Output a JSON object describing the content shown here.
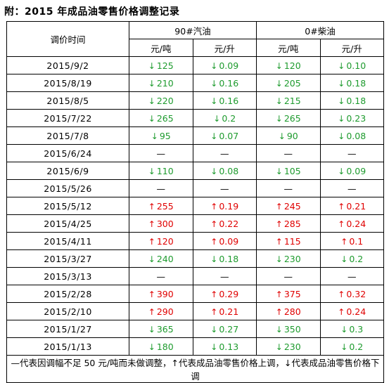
{
  "title": "附：2015 年成品油零售价格调整记录",
  "headers": {
    "date": "调价时间",
    "gasoline": "90#汽油",
    "diesel": "0#柴油",
    "unit_ton": "元/吨",
    "unit_liter": "元/升"
  },
  "rows": [
    {
      "date": "2015/9/2",
      "dir": "down",
      "g_ton": "125",
      "g_liter": "0.09",
      "d_ton": "120",
      "d_liter": "0.10"
    },
    {
      "date": "2015/8/19",
      "dir": "down",
      "g_ton": "210",
      "g_liter": "0.16",
      "d_ton": "205",
      "d_liter": "0.18"
    },
    {
      "date": "2015/8/5",
      "dir": "down",
      "g_ton": "220",
      "g_liter": "0.16",
      "d_ton": "215",
      "d_liter": "0.18"
    },
    {
      "date": "2015/7/22",
      "dir": "down",
      "g_ton": "265",
      "g_liter": "0.2",
      "d_ton": "265",
      "d_liter": "0.23"
    },
    {
      "date": "2015/7/8",
      "dir": "down",
      "g_ton": "95",
      "g_liter": "0.07",
      "d_ton": "90",
      "d_liter": "0.08"
    },
    {
      "date": "2015/6/24",
      "dir": "none",
      "g_ton": "—",
      "g_liter": "—",
      "d_ton": "—",
      "d_liter": "—"
    },
    {
      "date": "2015/6/9",
      "dir": "down",
      "g_ton": "110",
      "g_liter": "0.08",
      "d_ton": "105",
      "d_liter": "0.09"
    },
    {
      "date": "2015/5/26",
      "dir": "none",
      "g_ton": "—",
      "g_liter": "—",
      "d_ton": "—",
      "d_liter": "—"
    },
    {
      "date": "2015/5/12",
      "dir": "up",
      "g_ton": "255",
      "g_liter": "0.19",
      "d_ton": "245",
      "d_liter": "0.21"
    },
    {
      "date": "2015/4/25",
      "dir": "up",
      "g_ton": "300",
      "g_liter": "0.22",
      "d_ton": "285",
      "d_liter": "0.24"
    },
    {
      "date": "2015/4/11",
      "dir": "up",
      "g_ton": "120",
      "g_liter": "0.09",
      "d_ton": "115",
      "d_liter": "0.1"
    },
    {
      "date": "2015/3/27",
      "dir": "down",
      "g_ton": "240",
      "g_liter": "0.18",
      "d_ton": "230",
      "d_liter": "0.2"
    },
    {
      "date": "2015/3/13",
      "dir": "none",
      "g_ton": "—",
      "g_liter": "—",
      "d_ton": "—",
      "d_liter": "—"
    },
    {
      "date": "2015/2/28",
      "dir": "up",
      "g_ton": "390",
      "g_liter": "0.29",
      "d_ton": "375",
      "d_liter": "0.32"
    },
    {
      "date": "2015/2/10",
      "dir": "up",
      "g_ton": "290",
      "g_liter": "0.21",
      "d_ton": "280",
      "d_liter": "0.24"
    },
    {
      "date": "2015/1/27",
      "dir": "down",
      "g_ton": "365",
      "g_liter": "0.27",
      "d_ton": "350",
      "d_liter": "0.3"
    },
    {
      "date": "2015/1/13",
      "dir": "down",
      "g_ton": "180",
      "g_liter": "0.13",
      "d_ton": "230",
      "d_liter": "0.2"
    }
  ],
  "arrows": {
    "up": "↑",
    "down": "↓"
  },
  "colors": {
    "up": "#e00000",
    "down": "#1e9b2e"
  },
  "footer": "—代表因调幅不足 50 元/吨而未做调整，↑代表成品油零售价格上调，↓代表成品油零售价格下调"
}
